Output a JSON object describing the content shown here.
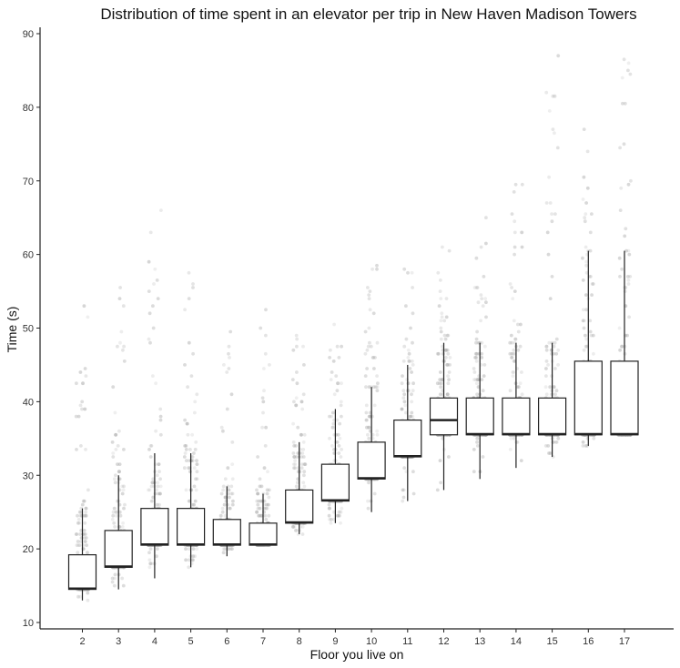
{
  "chart_data": {
    "type": "boxplot",
    "title": "Distribution of time spent in an elevator per trip in New Haven Madison Towers",
    "xlabel": "Floor you live on",
    "ylabel": "Time (s)",
    "ylim": [
      10,
      90
    ],
    "yticks": [
      10,
      20,
      30,
      40,
      50,
      60,
      70,
      80,
      90
    ],
    "grid": false,
    "legend": "none",
    "categories": [
      "2",
      "3",
      "4",
      "5",
      "6",
      "7",
      "8",
      "9",
      "10",
      "11",
      "12",
      "13",
      "14",
      "15",
      "16",
      "17"
    ],
    "boxes": [
      {
        "floor": "2",
        "whisker_low": 13.0,
        "q1": 14.5,
        "median": 14.6,
        "q3": 19.2,
        "whisker_high": 25.5,
        "max_point": 53.0
      },
      {
        "floor": "3",
        "whisker_low": 14.5,
        "q1": 17.5,
        "median": 17.6,
        "q3": 22.5,
        "whisker_high": 30.0,
        "max_point": 55.5
      },
      {
        "floor": "4",
        "whisker_low": 16.0,
        "q1": 20.5,
        "median": 20.6,
        "q3": 25.5,
        "whisker_high": 33.0,
        "max_point": 66.0
      },
      {
        "floor": "5",
        "whisker_low": 17.5,
        "q1": 20.5,
        "median": 20.6,
        "q3": 25.5,
        "whisker_high": 33.0,
        "max_point": 57.5
      },
      {
        "floor": "6",
        "whisker_low": 19.0,
        "q1": 20.5,
        "median": 20.6,
        "q3": 24.0,
        "whisker_high": 28.5,
        "max_point": 49.5
      },
      {
        "floor": "7",
        "whisker_low": 20.5,
        "q1": 20.5,
        "median": 20.6,
        "q3": 23.5,
        "whisker_high": 27.5,
        "max_point": 52.5
      },
      {
        "floor": "8",
        "whisker_low": 22.0,
        "q1": 23.5,
        "median": 23.6,
        "q3": 28.0,
        "whisker_high": 34.5,
        "max_point": 49.0
      },
      {
        "floor": "9",
        "whisker_low": 23.5,
        "q1": 26.5,
        "median": 26.6,
        "q3": 31.5,
        "whisker_high": 39.0,
        "max_point": 50.5
      },
      {
        "floor": "10",
        "whisker_low": 25.0,
        "q1": 29.5,
        "median": 29.6,
        "q3": 34.5,
        "whisker_high": 42.0,
        "max_point": 58.5
      },
      {
        "floor": "11",
        "whisker_low": 26.5,
        "q1": 32.5,
        "median": 32.6,
        "q3": 37.5,
        "whisker_high": 45.0,
        "max_point": 58.0
      },
      {
        "floor": "12",
        "whisker_low": 28.0,
        "q1": 35.5,
        "median": 37.5,
        "q3": 40.5,
        "whisker_high": 48.0,
        "max_point": 61.0
      },
      {
        "floor": "13",
        "whisker_low": 29.5,
        "q1": 35.5,
        "median": 35.6,
        "q3": 40.5,
        "whisker_high": 48.0,
        "max_point": 65.0
      },
      {
        "floor": "14",
        "whisker_low": 31.0,
        "q1": 35.5,
        "median": 35.6,
        "q3": 40.5,
        "whisker_high": 48.0,
        "max_point": 69.5
      },
      {
        "floor": "15",
        "whisker_low": 32.5,
        "q1": 35.5,
        "median": 35.6,
        "q3": 40.5,
        "whisker_high": 48.0,
        "max_point": 87.0
      },
      {
        "floor": "16",
        "whisker_low": 34.0,
        "q1": 35.5,
        "median": 35.6,
        "q3": 45.5,
        "whisker_high": 60.5,
        "max_point": 77.0
      },
      {
        "floor": "17",
        "whisker_low": 35.5,
        "q1": 35.5,
        "median": 35.6,
        "q3": 45.5,
        "whisker_high": 60.5,
        "max_point": 86.5
      }
    ],
    "colors": {
      "box_fill": "#ffffff",
      "box_stroke": "#222222",
      "points": "#a9a9a9"
    }
  }
}
